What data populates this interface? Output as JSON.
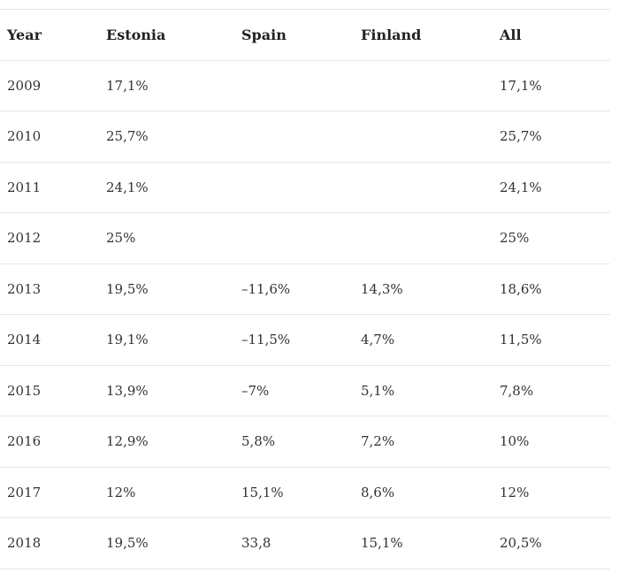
{
  "table": {
    "headers": [
      "Year",
      "Estonia",
      "Spain",
      "Finland",
      "All"
    ],
    "rows": [
      [
        "2009",
        "17,1%",
        "",
        "",
        "17,1%"
      ],
      [
        "2010",
        "25,7%",
        "",
        "",
        "25,7%"
      ],
      [
        "2011",
        "24,1%",
        "",
        "",
        "24,1%"
      ],
      [
        "2012",
        "25%",
        "",
        "",
        "25%"
      ],
      [
        "2013",
        "19,5%",
        "–11,6%",
        "14,3%",
        "18,6%"
      ],
      [
        "2014",
        "19,1%",
        "–11,5%",
        "4,7%",
        "11,5%"
      ],
      [
        "2015",
        "13,9%",
        "–7%",
        "5,1%",
        "7,8%"
      ],
      [
        "2016",
        "12,9%",
        "5,8%",
        "7,2%",
        "10%"
      ],
      [
        "2017",
        "12%",
        "15,1%",
        "8,6%",
        "12%"
      ],
      [
        "2018",
        "19,5%",
        "33,8",
        "15,1%",
        "20,5%"
      ]
    ]
  }
}
